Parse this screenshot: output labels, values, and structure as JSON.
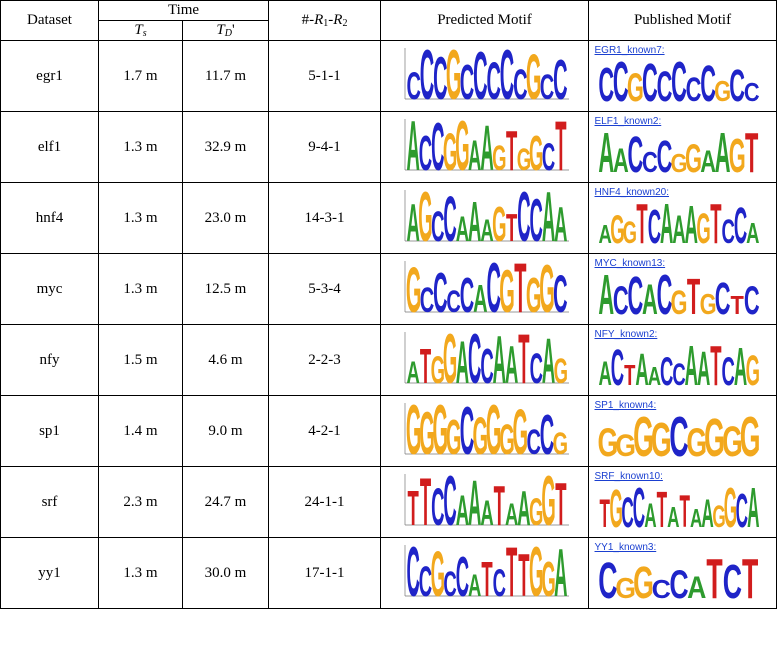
{
  "headers": {
    "dataset": "Dataset",
    "time": "Time",
    "ts_main": "T",
    "ts_sub": "s",
    "td_main": "T",
    "td_sub": "D",
    "td_prime": "'",
    "r_prefix": "#-",
    "r1_main": "R",
    "r1_sub": "1",
    "r_dash": "-",
    "r2_main": "R",
    "r2_sub": "2",
    "predicted": "Predicted Motif",
    "published": "Published Motif"
  },
  "rows": [
    {
      "dataset": "egr1",
      "ts": "1.7 m",
      "td": "11.7 m",
      "r": "5-1-1",
      "published_label": "EGR1_known7:",
      "predicted": "CCCGCCCCCGCC",
      "published": "CCGCCCCCGCC"
    },
    {
      "dataset": "elf1",
      "ts": "1.3 m",
      "td": "32.9 m",
      "r": "9-4-1",
      "published_label": "ELF1_known2:",
      "predicted": "ACCGGAAGTGGCT",
      "published": "AACCCGGAAGT"
    },
    {
      "dataset": "hnf4",
      "ts": "1.3 m",
      "td": "23.0 m",
      "r": "14-3-1",
      "published_label": "HNF4_known20:",
      "predicted": "AGCCAAAGTCCAA",
      "published": "AGGTCAAAGTCCA"
    },
    {
      "dataset": "myc",
      "ts": "1.3 m",
      "td": "12.5 m",
      "r": "5-3-4",
      "published_label": "MYC_known13:",
      "predicted": "GCCCCACGTGGC",
      "published": "ACCACGTGCTC"
    },
    {
      "dataset": "nfy",
      "ts": "1.5 m",
      "td": "4.6 m",
      "r": "2-2-3",
      "published_label": "NFY_known2:",
      "predicted": "ATGGACCAATCAG",
      "published": "ACTAACCAATCAG"
    },
    {
      "dataset": "sp1",
      "ts": "1.4 m",
      "td": "9.0 m",
      "r": "4-2-1",
      "published_label": "SP1_known4:",
      "predicted": "GGGGCGGGGCCG",
      "published": "GGGGCGGGG"
    },
    {
      "dataset": "srf",
      "ts": "2.3 m",
      "td": "24.7 m",
      "r": "24-1-1",
      "published_label": "SRF_known10:",
      "predicted": "TTCCAAATAAGGT",
      "published": "TGCCATATAAGGCA"
    },
    {
      "dataset": "yy1",
      "ts": "1.3 m",
      "td": "30.0 m",
      "r": "17-1-1",
      "published_label": "YY1_known3:",
      "predicted": "CCGCCATCTTGGA",
      "published": "CGGCCATCT"
    }
  ],
  "colors": {
    "A": "#2e9b2e",
    "C": "#1f24c8",
    "G": "#f2a81d",
    "T": "#d11d1d",
    "link": "#1a3fd0"
  }
}
